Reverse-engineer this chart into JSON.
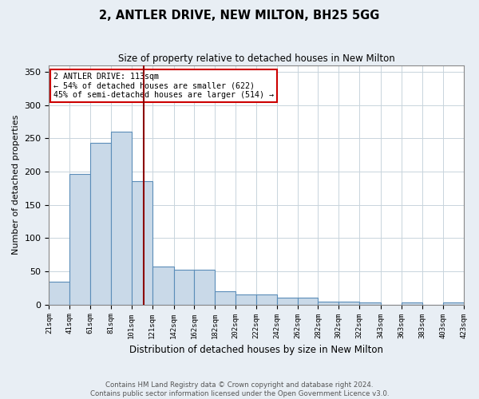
{
  "title": "2, ANTLER DRIVE, NEW MILTON, BH25 5GG",
  "subtitle": "Size of property relative to detached houses in New Milton",
  "xlabel": "Distribution of detached houses by size in New Milton",
  "ylabel": "Number of detached properties",
  "footnote1": "Contains HM Land Registry data © Crown copyright and database right 2024.",
  "footnote2": "Contains public sector information licensed under the Open Government Licence v3.0.",
  "annotation_line1": "2 ANTLER DRIVE: 113sqm",
  "annotation_line2": "← 54% of detached houses are smaller (622)",
  "annotation_line3": "45% of semi-detached houses are larger (514) →",
  "bar_color": "#c9d9e8",
  "bar_edge_color": "#5b8db8",
  "vline_color": "#8b0000",
  "annotation_box_edge": "#cc0000",
  "bin_edges": [
    21,
    41,
    61,
    81,
    101,
    121,
    142,
    162,
    182,
    202,
    222,
    242,
    262,
    282,
    302,
    322,
    343,
    363,
    383,
    403,
    423
  ],
  "bin_labels": [
    "21sqm",
    "41sqm",
    "61sqm",
    "81sqm",
    "101sqm",
    "121sqm",
    "142sqm",
    "162sqm",
    "182sqm",
    "202sqm",
    "222sqm",
    "242sqm",
    "262sqm",
    "282sqm",
    "302sqm",
    "322sqm",
    "343sqm",
    "363sqm",
    "383sqm",
    "403sqm",
    "423sqm"
  ],
  "bar_heights": [
    35,
    197,
    243,
    260,
    186,
    57,
    52,
    52,
    20,
    15,
    15,
    10,
    10,
    5,
    5,
    3,
    0,
    3,
    0,
    3
  ],
  "property_size": 113,
  "ylim": [
    0,
    360
  ],
  "yticks": [
    0,
    50,
    100,
    150,
    200,
    250,
    300,
    350
  ],
  "background_color": "#e8eef4",
  "plot_background": "#ffffff",
  "grid_color": "#c8d4dc"
}
